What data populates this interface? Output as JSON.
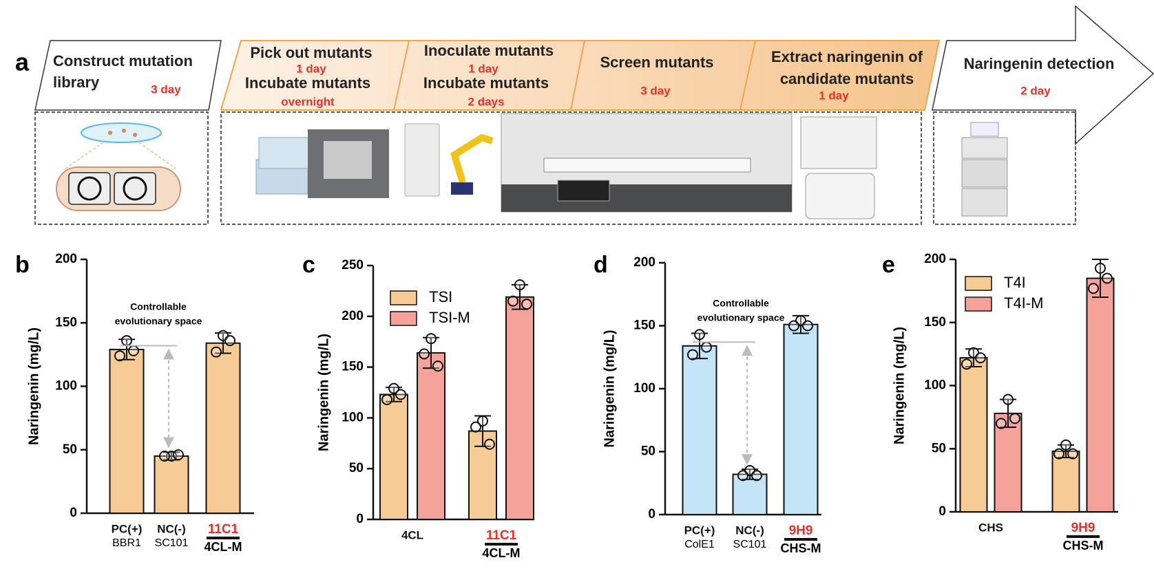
{
  "panel_a": {
    "label": "a",
    "steps": [
      {
        "tasks": [
          {
            "title": [
              "Construct mutation",
              "library"
            ],
            "duration": "3 day"
          }
        ]
      },
      {
        "tasks": [
          {
            "title": [
              "Pick out mutants"
            ],
            "duration": "1 day"
          },
          {
            "title": [
              "Incubate mutants"
            ],
            "duration": "overnight"
          }
        ]
      },
      {
        "tasks": [
          {
            "title": [
              "Inoculate mutants"
            ],
            "duration": "1 day"
          },
          {
            "title": [
              "Incubate mutants"
            ],
            "duration": "2 days"
          }
        ]
      },
      {
        "tasks": [
          {
            "title": [
              "Screen mutants"
            ],
            "duration": "3 day"
          }
        ]
      },
      {
        "tasks": [
          {
            "title": [
              "Extract naringenin of",
              "candidate mutants"
            ],
            "duration": "1 day"
          }
        ]
      },
      {
        "tasks": [
          {
            "title": [
              "Naringenin detection"
            ],
            "duration": "2 day"
          }
        ]
      }
    ]
  },
  "chart_data": [
    {
      "type": "bar",
      "panel_label": "b",
      "y_label": "Naringenin (mg/L)",
      "categories": [
        "PC(+)",
        "NC(-)",
        "11C1"
      ],
      "sublabels": [
        "BBR1",
        "SC101",
        "4CL-M"
      ],
      "highlight_index": 2,
      "highlight_color": "#e8302a",
      "color": "#f7cb96",
      "values": [
        129,
        45,
        134
      ],
      "errors": [
        8,
        3,
        8
      ],
      "points": [
        [
          136,
          124,
          128
        ],
        [
          45,
          45,
          46
        ],
        [
          140,
          127,
          136
        ]
      ],
      "ylim": [
        0,
        200
      ],
      "yticks": [
        0,
        50,
        100,
        150,
        200
      ],
      "annotation": [
        "Controllable",
        "evolutionary space"
      ],
      "reference_line": 132
    },
    {
      "type": "bar",
      "panel_label": "c",
      "y_label": "Naringenin (mg/L)",
      "categories": [
        "4CL",
        "11C1"
      ],
      "sublabels": [
        null,
        "4CL-M"
      ],
      "highlight_index": 1,
      "highlight_color": "#e8302a",
      "series": [
        {
          "name": "TSI",
          "color": "#f7cb96",
          "values": [
            123,
            87
          ],
          "errors": [
            7,
            15
          ],
          "points": [
            [
              129,
              118,
              123
            ],
            [
              97,
              91,
              74
            ]
          ]
        },
        {
          "name": "TSI-M",
          "color": "#f4a29a",
          "values": [
            164,
            219
          ],
          "errors": [
            15,
            12
          ],
          "points": [
            [
              178,
              163,
              151
            ],
            [
              231,
              215,
              212
            ]
          ]
        }
      ],
      "ylim": [
        0,
        250
      ],
      "yticks": [
        0,
        50,
        100,
        150,
        200,
        250
      ],
      "legend": "upper left"
    },
    {
      "type": "bar",
      "panel_label": "d",
      "y_label": "Naringenin (mg/L)",
      "categories": [
        "PC(+)",
        "NC(-)",
        "9H9"
      ],
      "sublabels": [
        "ColE1",
        "SC101",
        "CHS-M"
      ],
      "highlight_index": 2,
      "highlight_color": "#e8302a",
      "color": "#c4e4f8",
      "values": [
        134,
        32,
        151
      ],
      "errors": [
        10,
        4,
        7
      ],
      "points": [
        [
          143,
          127,
          133
        ],
        [
          35,
          31,
          31
        ],
        [
          154,
          150,
          150
        ]
      ],
      "ylim": [
        0,
        200
      ],
      "yticks": [
        0,
        50,
        100,
        150,
        200
      ],
      "annotation": [
        "Controllable",
        "evolutionary space"
      ],
      "reference_line": 137
    },
    {
      "type": "bar",
      "panel_label": "e",
      "y_label": "Naringenin (mg/L)",
      "categories": [
        "CHS",
        "9H9"
      ],
      "sublabels": [
        null,
        "CHS-M"
      ],
      "highlight_index": 1,
      "highlight_color": "#e8302a",
      "series": [
        {
          "name": "T4I",
          "color": "#f7cb96",
          "values": [
            122,
            48
          ],
          "errors": [
            7,
            5
          ],
          "points": [
            [
              126,
              117,
              122
            ],
            [
              53,
              46,
              46
            ]
          ]
        },
        {
          "name": "T4I-M",
          "color": "#f4a29a",
          "values": [
            78,
            185
          ],
          "errors": [
            11,
            15
          ],
          "points": [
            [
              89,
              70,
              74
            ],
            [
              193,
              177,
              185
            ]
          ]
        }
      ],
      "ylim": [
        0,
        200
      ],
      "yticks": [
        0,
        50,
        100,
        150,
        200
      ],
      "legend": "upper left"
    }
  ]
}
